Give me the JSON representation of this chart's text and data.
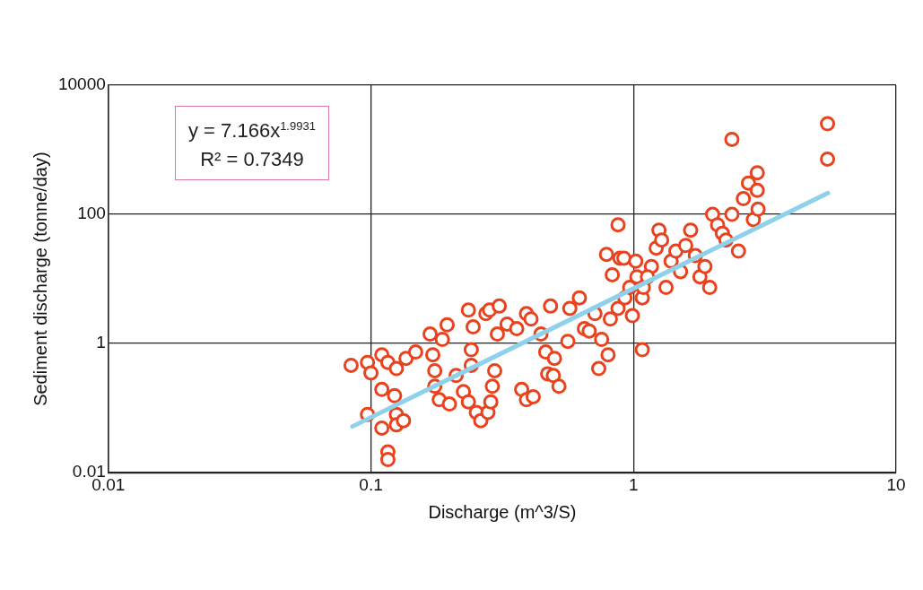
{
  "chart_data": {
    "type": "scatter",
    "xlabel": "Discharge (m^3/S)",
    "ylabel": "Sediment discharge (tonne/day)",
    "log": "xy",
    "grid": true,
    "legend": false,
    "marker": "circle",
    "xlim": [
      0.01,
      10
    ],
    "xticks": [
      0.01,
      0.1,
      1,
      10
    ],
    "ylim": [
      0.01,
      10000
    ],
    "yticks": [
      0.01,
      1,
      100,
      10000
    ],
    "annotations": [
      "y = 7.166x$^{1.9931}$",
      "R² = 0.7349"
    ],
    "series": [
      {
        "color": "#e8431e",
        "x": [
          0.084,
          0.097,
          0.11,
          0.1,
          0.116,
          0.125,
          0.136,
          0.148,
          0.11,
          0.123,
          0.097,
          0.125,
          0.11,
          0.125,
          0.116,
          0.116,
          0.133,
          0.168,
          0.172,
          0.175,
          0.187,
          0.195,
          0.175,
          0.182,
          0.199,
          0.211,
          0.225,
          0.235,
          0.241,
          0.241,
          0.245,
          0.235,
          0.252,
          0.262,
          0.279,
          0.286,
          0.29,
          0.296,
          0.303,
          0.274,
          0.283,
          0.308,
          0.33,
          0.359,
          0.375,
          0.391,
          0.415,
          0.444,
          0.463,
          0.483,
          0.391,
          0.407,
          0.471,
          0.495,
          0.52,
          0.5,
          0.562,
          0.572,
          0.622,
          0.65,
          0.678,
          0.713,
          0.756,
          0.8,
          0.737,
          0.816,
          0.873,
          0.927,
          0.967,
          0.99,
          1.03,
          1.08,
          0.888,
          0.873,
          0.789,
          0.83,
          0.919,
          1.02,
          1.09,
          1.08,
          1.17,
          1.22,
          1.25,
          1.28,
          1.33,
          1.39,
          1.45,
          1.51,
          1.58,
          1.65,
          1.72,
          1.79,
          1.87,
          1.95,
          2.0,
          2.09,
          2.18,
          2.25,
          2.37,
          2.51,
          2.62,
          2.74,
          2.86,
          2.98,
          2.37,
          2.96,
          2.96,
          5.48,
          5.48,
          1.13
        ],
        "values": [
          0.46,
          0.51,
          0.67,
          0.35,
          0.51,
          0.41,
          0.59,
          0.74,
          0.195,
          0.156,
          0.08,
          0.08,
          0.049,
          0.055,
          0.021,
          0.016,
          0.064,
          1.4,
          0.67,
          0.38,
          1.16,
          1.95,
          0.218,
          0.135,
          0.116,
          0.32,
          0.18,
          0.125,
          0.46,
          0.8,
          1.81,
          3.3,
          0.086,
          0.064,
          0.086,
          0.125,
          0.218,
          0.38,
          1.4,
          2.9,
          3.3,
          3.8,
          2.0,
          1.7,
          0.195,
          0.135,
          0.15,
          1.4,
          0.74,
          3.8,
          2.9,
          2.4,
          0.34,
          0.32,
          0.218,
          0.59,
          1.08,
          3.5,
          5.1,
          1.7,
          1.56,
          2.9,
          1.16,
          0.67,
          0.41,
          2.4,
          3.5,
          5.1,
          7.4,
          2.7,
          10.8,
          5.1,
          21,
          69,
          24,
          11.6,
          21,
          18.8,
          7.4,
          0.8,
          15.6,
          30,
          57,
          40,
          7.4,
          18.8,
          27,
          13,
          33,
          57,
          23,
          10.8,
          15.6,
          7.4,
          100,
          69,
          51,
          40,
          100,
          27,
          175,
          305,
          83,
          120,
          1450,
          440,
          235,
          2530,
          716,
          10.8
        ]
      },
      {
        "type": "line",
        "marker": "none",
        "color": "#8fd0ea",
        "x": [
          0.085,
          5.5
        ],
        "values": [
          0.052,
          214
        ]
      }
    ]
  }
}
